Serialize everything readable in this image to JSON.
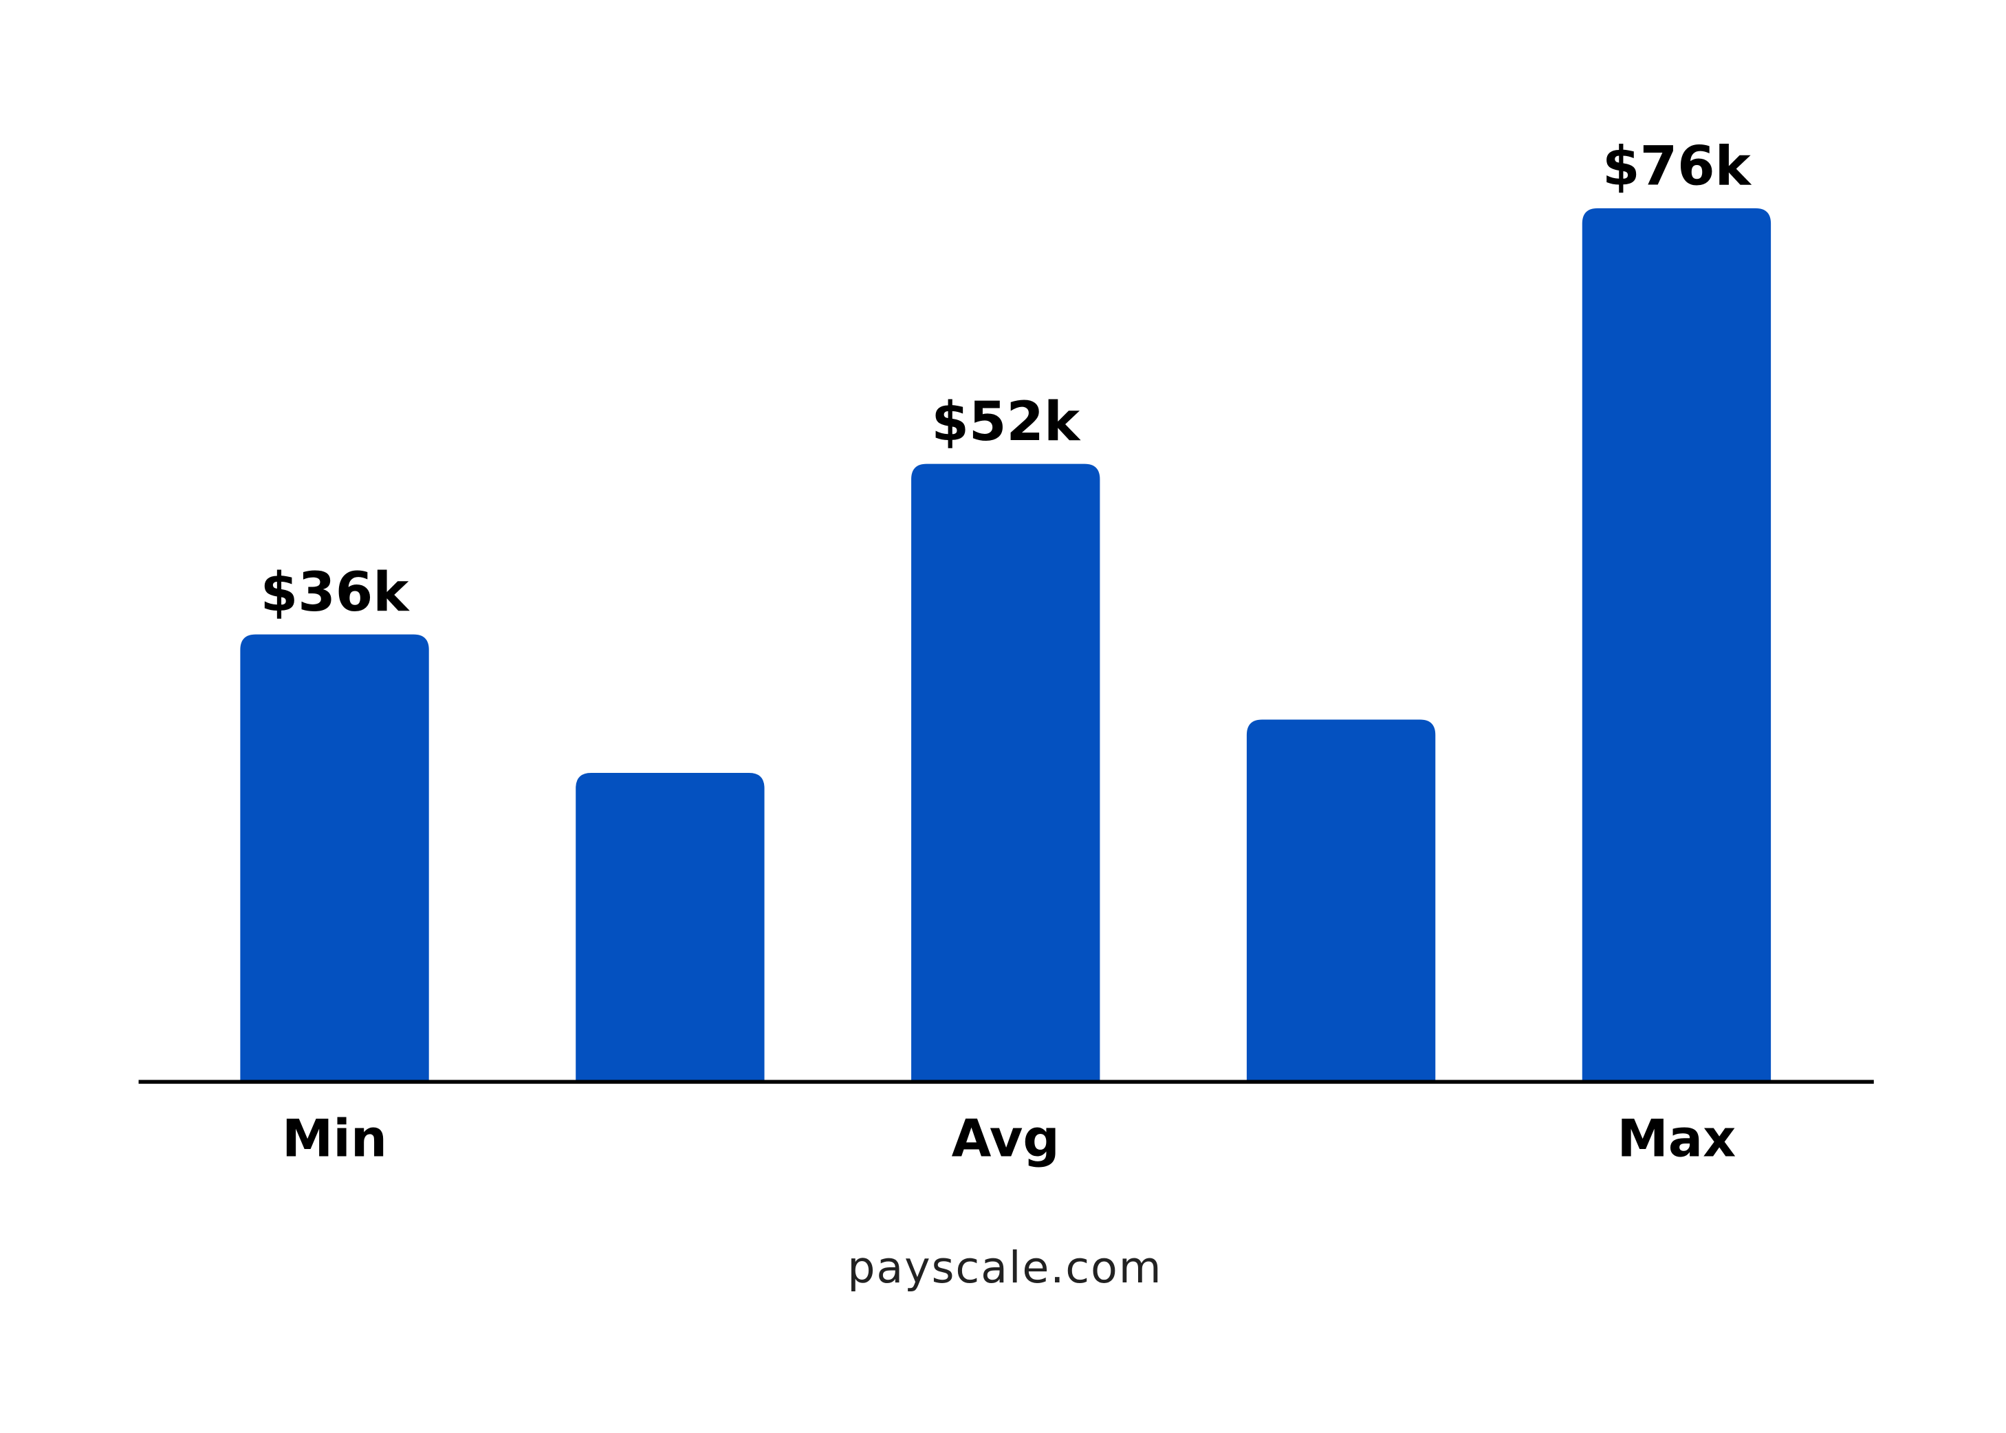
{
  "chart_data": {
    "type": "bar",
    "categories": [
      "Min",
      null,
      "Avg",
      null,
      "Max"
    ],
    "values": [
      36000,
      23000,
      52000,
      28000,
      76000
    ],
    "value_labels": [
      "$36k",
      null,
      "$52k",
      null,
      "$76k"
    ],
    "color": "#0451c0",
    "ylim": [
      -6000,
      90000
    ],
    "source": "payscale.com"
  }
}
